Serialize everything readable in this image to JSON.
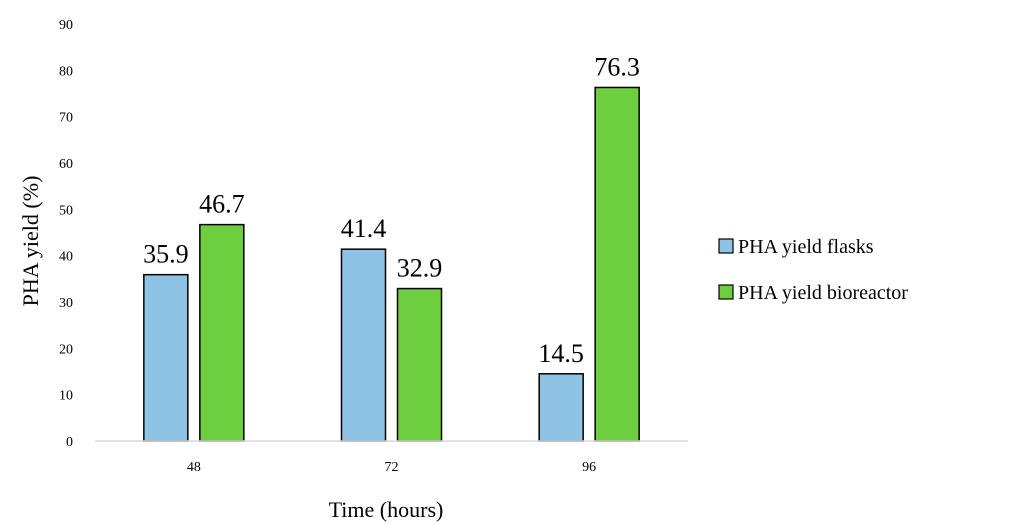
{
  "chart_data": {
    "type": "bar",
    "categories": [
      "48",
      "72",
      "96"
    ],
    "series": [
      {
        "name": "PHA yield flasks",
        "values": [
          35.9,
          41.4,
          14.5
        ],
        "color": "#8fc3e6"
      },
      {
        "name": "PHA yield bioreactor",
        "values": [
          46.7,
          32.9,
          76.3
        ],
        "color": "#6dcf3f"
      }
    ],
    "xlabel": "Time (hours)",
    "ylabel": "PHA yield (%)",
    "ylim": [
      0,
      90
    ],
    "yticks": [
      0,
      10,
      20,
      30,
      40,
      50,
      60,
      70,
      80,
      90
    ],
    "grid": false,
    "legend_position": "right"
  }
}
